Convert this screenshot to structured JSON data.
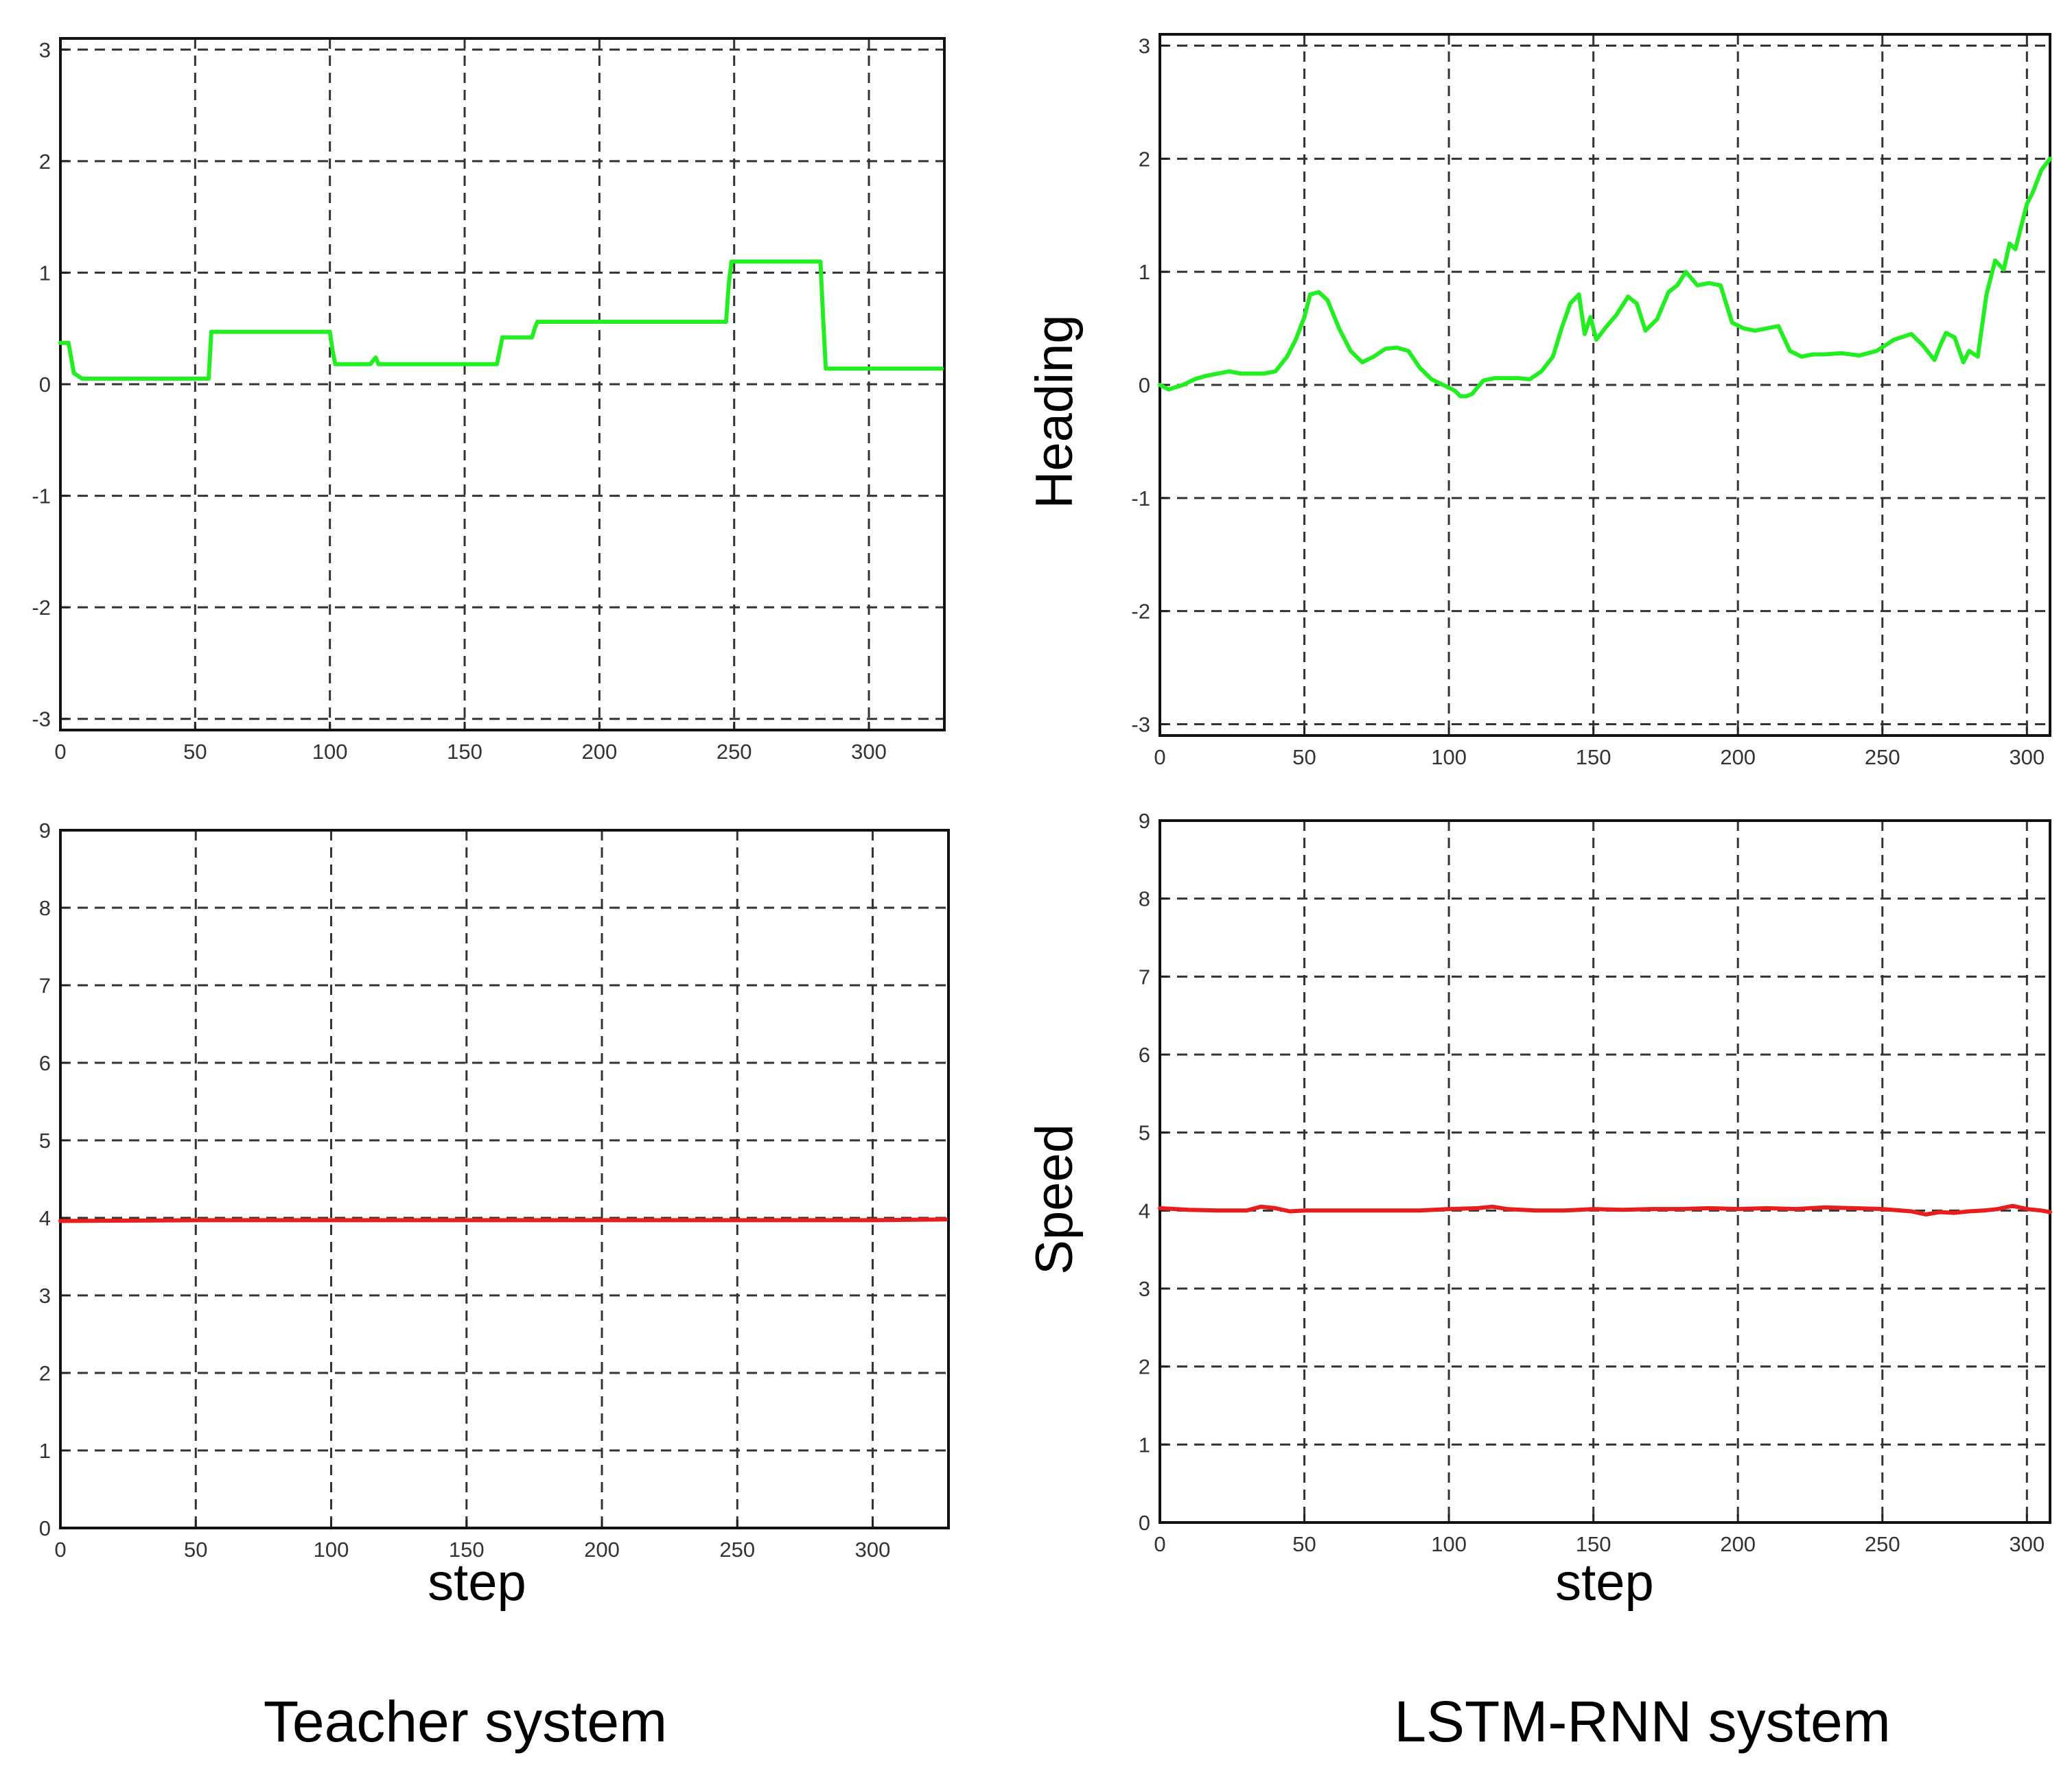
{
  "chart_data": [
    {
      "type": "line",
      "title": "",
      "xlabel": "",
      "ylabel": "",
      "xlim": [
        0,
        328
      ],
      "ylim": [
        -3.1,
        3.1
      ],
      "xticks": [
        0,
        50,
        100,
        150,
        200,
        250,
        300
      ],
      "yticks": [
        -3,
        -2,
        -1,
        0,
        1,
        2,
        3
      ],
      "grid": true,
      "series": [
        {
          "color": "#22ee22",
          "x": [
            0,
            3,
            5,
            8,
            12,
            53,
            55,
            56,
            100,
            101,
            102,
            115,
            117,
            118,
            162,
            163,
            164,
            175,
            176,
            177,
            243,
            247,
            248,
            249,
            282,
            283,
            284,
            327
          ],
          "y": [
            0.37,
            0.37,
            0.1,
            0.05,
            0.05,
            0.05,
            0.05,
            0.47,
            0.47,
            0.3,
            0.18,
            0.18,
            0.24,
            0.18,
            0.18,
            0.3,
            0.42,
            0.42,
            0.5,
            0.56,
            0.56,
            0.56,
            0.9,
            1.1,
            1.1,
            0.6,
            0.14,
            0.14
          ]
        }
      ]
    },
    {
      "type": "line",
      "title": "",
      "xlabel": "",
      "ylabel": "Heading",
      "xlim": [
        0,
        308
      ],
      "ylim": [
        -3.1,
        3.1
      ],
      "xticks": [
        0,
        50,
        100,
        150,
        200,
        250,
        300
      ],
      "yticks": [
        -3,
        -2,
        -1,
        0,
        1,
        2,
        3
      ],
      "grid": true,
      "series": [
        {
          "color": "#22ee22",
          "x": [
            0,
            3,
            8,
            12,
            16,
            20,
            24,
            28,
            32,
            36,
            40,
            44,
            47,
            50,
            52,
            55,
            58,
            62,
            66,
            70,
            74,
            78,
            82,
            86,
            90,
            94,
            98,
            102,
            104,
            106,
            108,
            112,
            116,
            120,
            124,
            128,
            132,
            136,
            139,
            142,
            145,
            147,
            149,
            151,
            154,
            158,
            162,
            165,
            168,
            172,
            176,
            179,
            182,
            186,
            190,
            194,
            198,
            202,
            206,
            210,
            214,
            218,
            222,
            226,
            230,
            236,
            242,
            248,
            254,
            260,
            264,
            268,
            270,
            272,
            275,
            278,
            280,
            283,
            286,
            289,
            292,
            294,
            296,
            298,
            300,
            302,
            305,
            308
          ],
          "y": [
            0.0,
            -0.04,
            0.0,
            0.05,
            0.08,
            0.1,
            0.12,
            0.1,
            0.1,
            0.1,
            0.12,
            0.25,
            0.4,
            0.6,
            0.8,
            0.82,
            0.75,
            0.5,
            0.3,
            0.2,
            0.25,
            0.32,
            0.33,
            0.3,
            0.15,
            0.05,
            0.0,
            -0.05,
            -0.1,
            -0.1,
            -0.08,
            0.04,
            0.06,
            0.06,
            0.06,
            0.05,
            0.12,
            0.25,
            0.5,
            0.72,
            0.8,
            0.45,
            0.6,
            0.4,
            0.5,
            0.62,
            0.78,
            0.72,
            0.48,
            0.58,
            0.82,
            0.88,
            1.0,
            0.88,
            0.9,
            0.88,
            0.55,
            0.5,
            0.48,
            0.5,
            0.52,
            0.3,
            0.25,
            0.27,
            0.27,
            0.28,
            0.26,
            0.3,
            0.4,
            0.45,
            0.35,
            0.22,
            0.35,
            0.46,
            0.42,
            0.2,
            0.3,
            0.25,
            0.8,
            1.1,
            1.02,
            1.25,
            1.2,
            1.4,
            1.6,
            1.7,
            1.9,
            2.0
          ]
        }
      ]
    },
    {
      "type": "line",
      "title": "",
      "xlabel": "step",
      "ylabel": "",
      "xlim": [
        0,
        328
      ],
      "ylim": [
        0,
        9
      ],
      "xticks": [
        0,
        50,
        100,
        150,
        200,
        250,
        300
      ],
      "yticks": [
        0,
        1,
        2,
        3,
        4,
        5,
        6,
        7,
        8,
        9
      ],
      "grid": true,
      "series": [
        {
          "color": "#e61e1e",
          "x": [
            0,
            50,
            100,
            150,
            200,
            250,
            300,
            327
          ],
          "y": [
            3.96,
            3.97,
            3.97,
            3.97,
            3.97,
            3.97,
            3.97,
            3.98
          ]
        }
      ]
    },
    {
      "type": "line",
      "title": "",
      "xlabel": "step",
      "ylabel": "Speed",
      "xlim": [
        0,
        308
      ],
      "ylim": [
        0,
        9
      ],
      "xticks": [
        0,
        50,
        100,
        150,
        200,
        250,
        300
      ],
      "yticks": [
        0,
        1,
        2,
        3,
        4,
        5,
        6,
        7,
        8,
        9
      ],
      "grid": true,
      "series": [
        {
          "color": "#e61e1e",
          "x": [
            0,
            10,
            20,
            30,
            35,
            40,
            45,
            50,
            60,
            70,
            80,
            90,
            100,
            110,
            115,
            120,
            130,
            140,
            150,
            160,
            170,
            180,
            190,
            200,
            210,
            220,
            230,
            240,
            250,
            260,
            265,
            270,
            275,
            280,
            285,
            290,
            295,
            300,
            305,
            308
          ],
          "y": [
            4.03,
            4.01,
            4.0,
            4.0,
            4.05,
            4.03,
            3.99,
            4.0,
            4.0,
            4.0,
            4.0,
            4.0,
            4.02,
            4.03,
            4.05,
            4.02,
            4.0,
            4.0,
            4.02,
            4.01,
            4.02,
            4.02,
            4.03,
            4.02,
            4.03,
            4.02,
            4.04,
            4.03,
            4.02,
            3.99,
            3.95,
            3.98,
            3.97,
            3.99,
            4.0,
            4.02,
            4.06,
            4.02,
            4.0,
            3.98
          ]
        }
      ]
    }
  ],
  "captions": {
    "left": "Teacher system",
    "right": "LSTM-RNN system"
  }
}
